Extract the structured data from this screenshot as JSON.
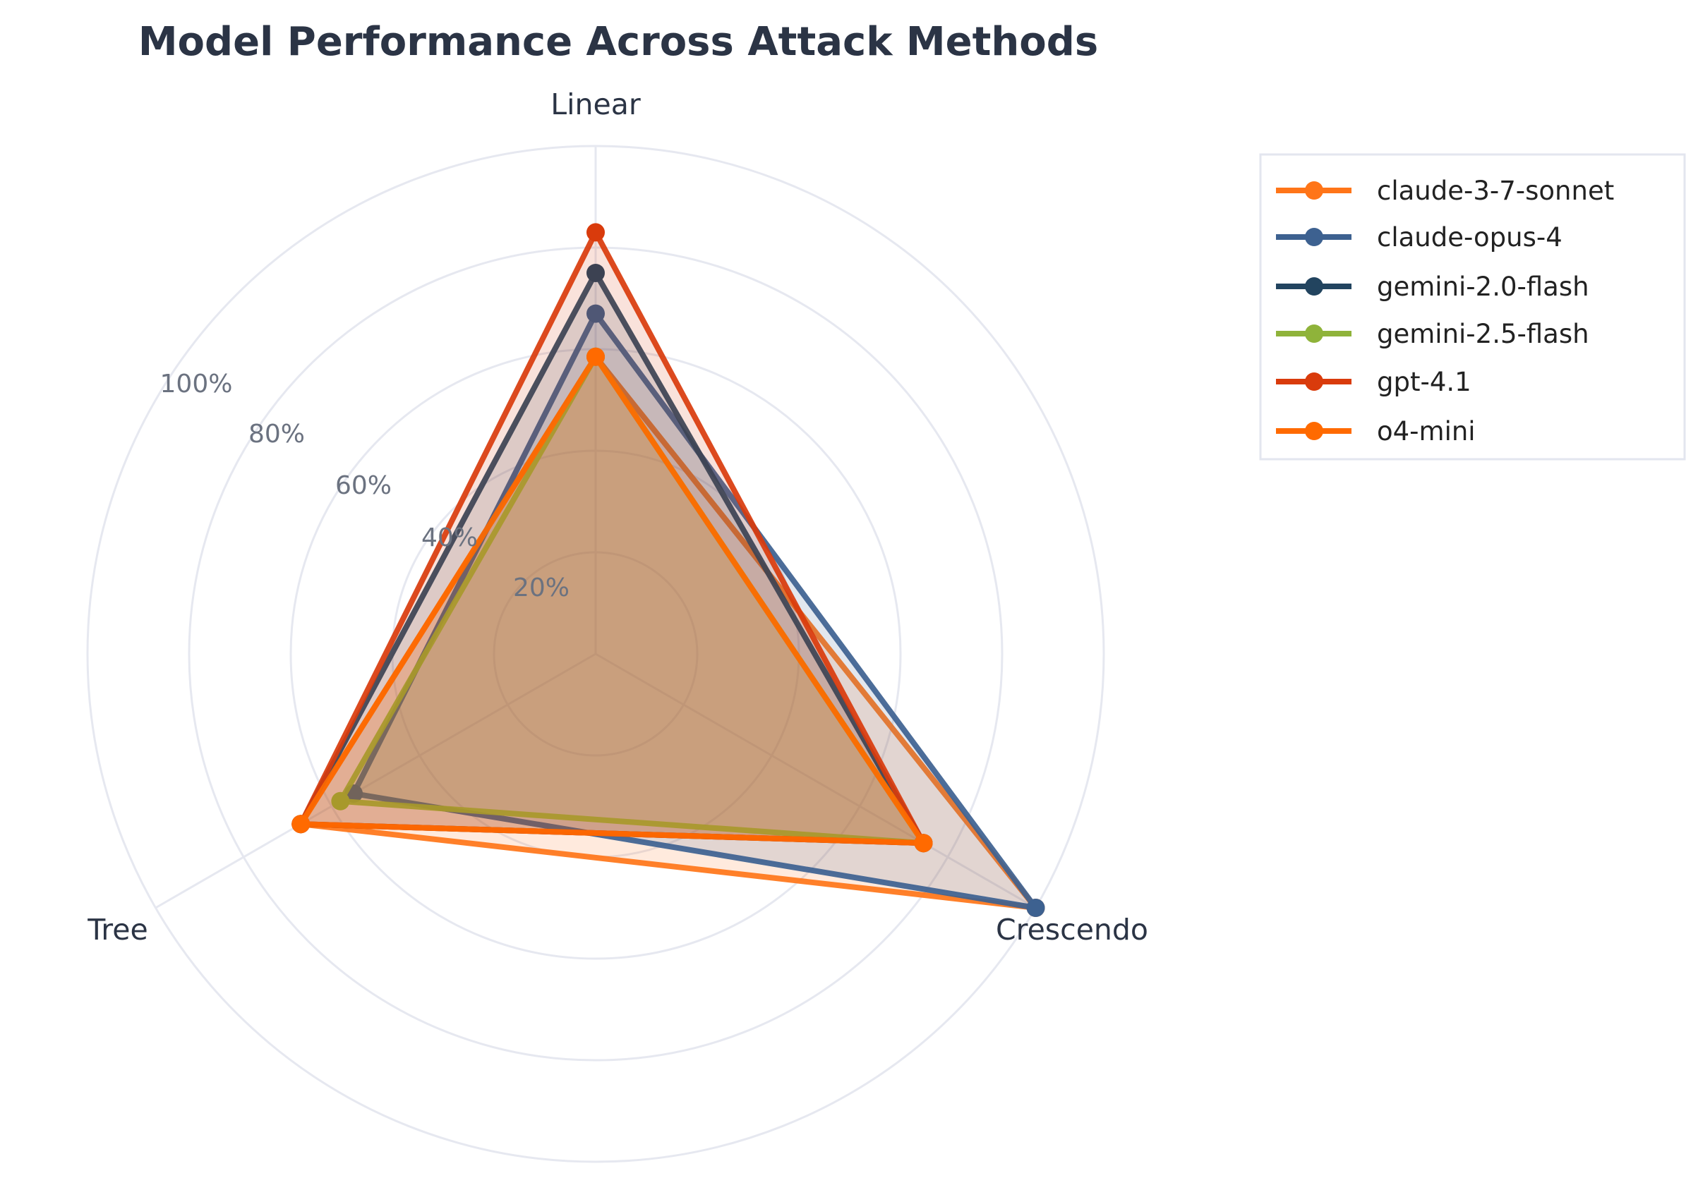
{
  "chart_data": {
    "type": "radar",
    "title": "Model Performance Across Attack Methods",
    "categories": [
      "Linear",
      "Crescendo",
      "Tree"
    ],
    "radial_ticks": [
      "20%",
      "40%",
      "60%",
      "80%",
      "100%"
    ],
    "rlim": [
      0,
      100
    ],
    "grid": true,
    "legend_position": "right",
    "series": [
      {
        "name": "claude-3-7-sonnet",
        "color": "#ff7518",
        "values": [
          58.5,
          100,
          67
        ]
      },
      {
        "name": "claude-opus-4",
        "color": "#3d6190",
        "values": [
          67,
          100,
          55
        ]
      },
      {
        "name": "gemini-2.0-flash",
        "color": "#22445f",
        "values": [
          75,
          74.5,
          67
        ]
      },
      {
        "name": "gemini-2.5-flash",
        "color": "#8fb33a",
        "values": [
          58.5,
          74.5,
          58
        ]
      },
      {
        "name": "gpt-4.1",
        "color": "#d93b0c",
        "values": [
          83,
          74.5,
          67
        ]
      },
      {
        "name": "o4-mini",
        "color": "#ff6a00",
        "values": [
          58.5,
          74.5,
          67
        ]
      }
    ]
  }
}
